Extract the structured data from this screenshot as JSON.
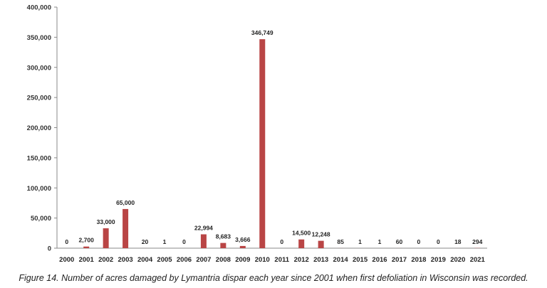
{
  "caption": "Figure 14. Number of acres damaged by Lymantria dispar each year since 2001 when first defoliation in Wisconsin was recorded.",
  "colors": {
    "bar": "#b94545",
    "axis": "#888888"
  },
  "chart_data": {
    "type": "bar",
    "categories": [
      "2000",
      "2001",
      "2002",
      "2003",
      "2004",
      "2005",
      "2006",
      "2007",
      "2008",
      "2009",
      "2010",
      "2011",
      "2012",
      "2013",
      "2014",
      "2015",
      "2016",
      "2017",
      "2018",
      "2019",
      "2020",
      "2021"
    ],
    "values": [
      0,
      2700,
      33000,
      65000,
      20,
      1,
      0,
      22994,
      8683,
      3666,
      346749,
      0,
      14500,
      12248,
      85,
      1,
      1,
      60,
      0,
      0,
      18,
      294
    ],
    "data_labels": [
      "0",
      "2,700",
      "33,000",
      "65,000",
      "20",
      "1",
      "0",
      "22,994",
      "8,683",
      "3,666",
      "346,749",
      "0",
      "14,500",
      "12,248",
      "85",
      "1",
      "1",
      "60",
      "0",
      "0",
      "18",
      "294"
    ],
    "ylim": [
      0,
      400000
    ],
    "yticks": [
      0,
      50000,
      100000,
      150000,
      200000,
      250000,
      300000,
      350000,
      400000
    ],
    "ytick_labels": [
      "0",
      "50,000",
      "100,000",
      "150,000",
      "200,000",
      "250,000",
      "300,000",
      "350,000",
      "400,000"
    ],
    "grid": false,
    "legend": "none"
  }
}
